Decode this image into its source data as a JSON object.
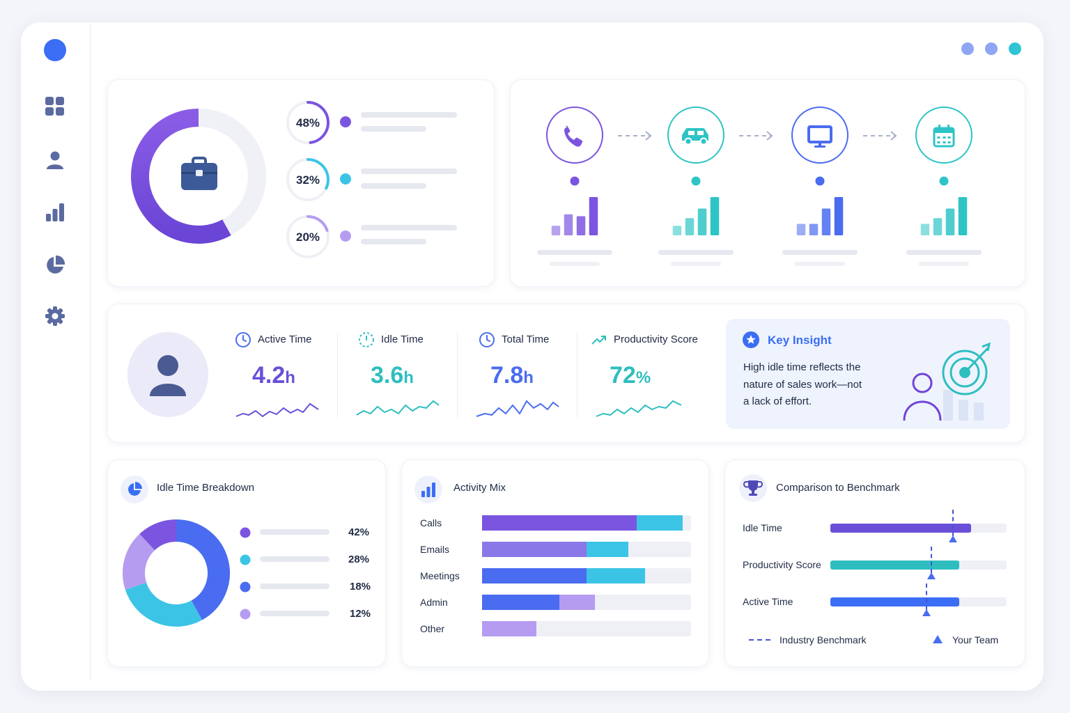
{
  "colors": {
    "accent": "#3b6ef5",
    "purple": "#7b55e0",
    "teal": "#2ec4c6",
    "cyan": "#3cc4e6",
    "blue": "#4a6cf0",
    "lavender": "#b59cf0",
    "window_dot_1": "#8fa6f5",
    "window_dot_2": "#8fa6f5",
    "window_dot_3": "#2ec4d6"
  },
  "sidebar": {
    "items": [
      {
        "icon": "grid-icon"
      },
      {
        "icon": "user-icon"
      },
      {
        "icon": "bar-chart-icon"
      },
      {
        "icon": "pie-chart-icon"
      },
      {
        "icon": "gear-icon"
      }
    ]
  },
  "overview": {
    "icon": "briefcase-icon",
    "donut_fill": 0.58,
    "rings": [
      {
        "label": "48%",
        "value": 0.48,
        "color": "#7b55e0"
      },
      {
        "label": "32%",
        "value": 0.32,
        "color": "#3cc4e6"
      },
      {
        "label": "20%",
        "value": 0.2,
        "color": "#b59cf0"
      }
    ]
  },
  "flow": {
    "steps": [
      {
        "icon": "phone-icon",
        "color": "#7b55e0",
        "bars": [
          0.25,
          0.55,
          0.5,
          1.0
        ]
      },
      {
        "icon": "car-icon",
        "color": "#2ec4c6",
        "bars": [
          0.25,
          0.45,
          0.7,
          1.0
        ]
      },
      {
        "icon": "monitor-icon",
        "color": "#4a6cf0",
        "bars": [
          0.3,
          0.3,
          0.7,
          1.0
        ]
      },
      {
        "icon": "calendar-icon",
        "color": "#2ec4c6",
        "bars": [
          0.3,
          0.45,
          0.7,
          1.0
        ]
      }
    ]
  },
  "kpis": [
    {
      "label": "Active Time",
      "value": "4.2",
      "unit": "h",
      "icon": "clock-icon",
      "color": "#6a4fd8"
    },
    {
      "label": "Idle Time",
      "value": "3.6",
      "unit": "h",
      "icon": "dashed-clock-icon",
      "color": "#2ebec0"
    },
    {
      "label": "Total Time",
      "value": "7.8",
      "unit": "h",
      "icon": "clock-icon",
      "color": "#4a6cf0"
    },
    {
      "label": "Productivity Score",
      "value": "72",
      "unit": "%",
      "icon": "trend-up-icon",
      "color": "#2ebec0"
    }
  ],
  "insight": {
    "title": "Key Insight",
    "lines": [
      "High idle time reflects the",
      "nature of sales work—not",
      "a lack of effort."
    ],
    "icon": "star-badge-icon"
  },
  "idle_breakdown": {
    "title": "Idle Time Breakdown",
    "icon": "pie-chart-icon",
    "segments": [
      {
        "label": "42%",
        "value": 42,
        "color": "#4a6cf0"
      },
      {
        "label": "28%",
        "value": 28,
        "color": "#3cc4e6"
      },
      {
        "label": "18%",
        "value": 18,
        "color": "#b59cf0"
      },
      {
        "label": "12%",
        "value": 12,
        "color": "#7b55e0"
      }
    ],
    "legend": [
      {
        "label": "42%",
        "color": "#7b55e0"
      },
      {
        "label": "28%",
        "color": "#3cc4e6"
      },
      {
        "label": "18%",
        "color": "#4a6cf0"
      },
      {
        "label": "12%",
        "color": "#b59cf0"
      }
    ]
  },
  "activity_mix": {
    "title": "Activity Mix",
    "icon": "bar-chart-icon",
    "rows": [
      {
        "label": "Calls",
        "segments": [
          {
            "value": 0.74,
            "color": "#7b55e0"
          },
          {
            "value": 0.22,
            "color": "#3cc4e6"
          }
        ]
      },
      {
        "label": "Emails",
        "segments": [
          {
            "value": 0.5,
            "color": "#8a78e8"
          },
          {
            "value": 0.2,
            "color": "#3cc4e6"
          }
        ]
      },
      {
        "label": "Meetings",
        "segments": [
          {
            "value": 0.5,
            "color": "#4a6cf0"
          },
          {
            "value": 0.28,
            "color": "#3cc4e6"
          }
        ]
      },
      {
        "label": "Admin",
        "segments": [
          {
            "value": 0.37,
            "color": "#4a6cf0"
          },
          {
            "value": 0.17,
            "color": "#b59cf0"
          }
        ]
      },
      {
        "label": "Other",
        "segments": [
          {
            "value": 0.26,
            "color": "#b59cf0"
          }
        ]
      }
    ]
  },
  "benchmark": {
    "title": "Comparison to Benchmark",
    "icon": "trophy-icon",
    "rows": [
      {
        "label": "Idle Time",
        "value": 0.8,
        "benchmark": 0.69,
        "color": "#6a4fd8"
      },
      {
        "label": "Productivity Score",
        "value": 0.73,
        "benchmark": 0.57,
        "color": "#2ebec0"
      },
      {
        "label": "Active Time",
        "value": 0.73,
        "benchmark": 0.54,
        "color": "#3b6ef5"
      }
    ],
    "legend_benchmark": "Industry Benchmark",
    "legend_team": "Your Team"
  }
}
